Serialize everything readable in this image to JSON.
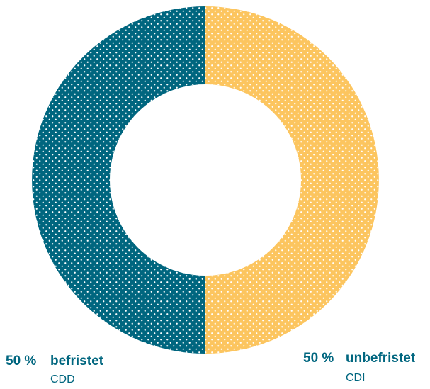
{
  "chart_data": {
    "type": "pie",
    "donut": true,
    "slices": [
      {
        "label": "unbefristet",
        "sublabel": "CDI",
        "value": 50,
        "value_text": "50 %",
        "color": "#fcc55f",
        "side": "right"
      },
      {
        "label": "befristet",
        "sublabel": "CDD",
        "value": 50,
        "value_text": "50 %",
        "color": "#00667f",
        "side": "left"
      }
    ],
    "start_angle": "top",
    "direction": "clockwise",
    "pattern": "dotted"
  },
  "colors": {
    "text": "#00667f",
    "dot": "#ffffff"
  }
}
